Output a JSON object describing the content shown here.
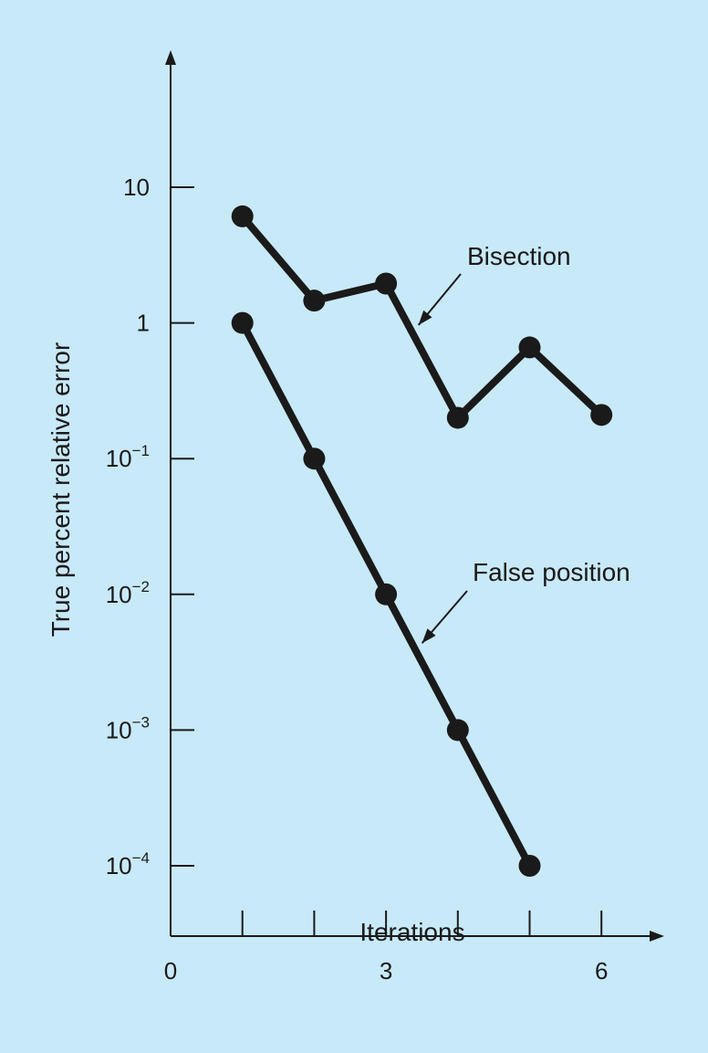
{
  "chart_data": {
    "type": "line",
    "title": "",
    "xlabel": "Iterations",
    "ylabel": "True percent relative error",
    "yscale": "log",
    "xlim": [
      0,
      7
    ],
    "ylim": [
      0.0001,
      100
    ],
    "grid": false,
    "x_ticks": [
      {
        "value": 0,
        "label": "0"
      },
      {
        "value": 1,
        "label": ""
      },
      {
        "value": 2,
        "label": ""
      },
      {
        "value": 3,
        "label": "3"
      },
      {
        "value": 4,
        "label": ""
      },
      {
        "value": 5,
        "label": ""
      },
      {
        "value": 6,
        "label": "6"
      }
    ],
    "y_ticks": [
      {
        "value": 10,
        "base": "10",
        "exp": ""
      },
      {
        "value": 1,
        "base": "1",
        "exp": ""
      },
      {
        "value": 0.1,
        "base": "10",
        "exp": "−1"
      },
      {
        "value": 0.01,
        "base": "10",
        "exp": "−2"
      },
      {
        "value": 0.001,
        "base": "10",
        "exp": "−3"
      },
      {
        "value": 0.0001,
        "base": "10",
        "exp": "−4"
      }
    ],
    "series": [
      {
        "name": "Bisection",
        "x": [
          1,
          2,
          3,
          4,
          5,
          6
        ],
        "y": [
          6.1,
          1.46,
          1.95,
          0.2,
          0.66,
          0.21
        ]
      },
      {
        "name": "False position",
        "x": [
          1,
          2,
          3,
          4,
          5
        ],
        "y": [
          1.0,
          0.1,
          0.01,
          0.001,
          0.0001
        ]
      }
    ],
    "annotations": [
      {
        "text": "Bisection",
        "series": "Bisection",
        "points_to_x": 3.35
      },
      {
        "text": "False position",
        "series": "False position",
        "points_to_x": 3.4
      }
    ],
    "colors": {
      "background": "#c8e9f8",
      "ink": "#1a1a1a"
    }
  }
}
